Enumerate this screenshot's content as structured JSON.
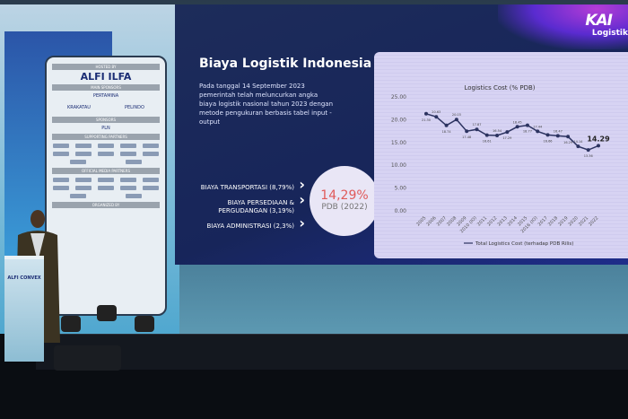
{
  "slide": {
    "brand": "KAI",
    "brand_sub": "Logistik",
    "title": "Biaya Logistik Indonesia",
    "description": "Pada tanggal 14 September 2023 pemerintah telah meluncurkan angka biaya logistik nasional tahun 2023 dengan metode pengukuran berbasis tabel input - output",
    "cost_items": [
      "BIAYA TRANSPORTASI (8,79%)",
      "BIAYA PERSEDIAAN & PERGUDANGAN (3,19%)",
      "BIAYA ADMINISTRASI (2,3%)"
    ],
    "total_pct": "14,29%",
    "total_label": "PDB (2022)"
  },
  "banner": {
    "hosted_by": "HOSTED BY",
    "host": "ALFI ILFA",
    "main_sponsors": "MAIN SPONSORS",
    "sponsor_main": "PERTAMINA",
    "sponsor_others": [
      "KRAKATAU",
      "PELINDO"
    ],
    "sponsors": "SPONSORS",
    "sponsor_pln": "PLN",
    "supporting": "SUPPORTING PARTNERS",
    "media": "OFFICIAL MEDIA PARTNERS",
    "organized": "ORGANIZED BY"
  },
  "podium": {
    "label": "ALFI CONVEX"
  },
  "chart_data": {
    "type": "line",
    "title": "Logistics Cost (% PDB)",
    "categories": [
      "2005",
      "2006",
      "2007",
      "2008",
      "2009",
      "2010 (IO)",
      "2011",
      "2012",
      "2013",
      "2014",
      "2015",
      "2016 (IO)",
      "2017",
      "2018",
      "2019",
      "2020",
      "2021",
      "2022"
    ],
    "series": [
      {
        "name": "Total Logistics Cost (terhadap PDB Rilis)",
        "values": [
          21.3,
          20.63,
          18.74,
          20.03,
          17.48,
          17.87,
          16.61,
          16.54,
          17.29,
          18.45,
          18.77,
          17.44,
          16.66,
          16.47,
          16.29,
          14.14,
          13.36,
          14.29
        ]
      }
    ],
    "ylim": [
      0,
      25
    ],
    "yticks": [
      "0.00",
      "5.00",
      "10.00",
      "15.00",
      "20.00",
      "25.00"
    ],
    "highlight_label": "14.29",
    "legend": "bottom",
    "color": "#2c3360"
  }
}
